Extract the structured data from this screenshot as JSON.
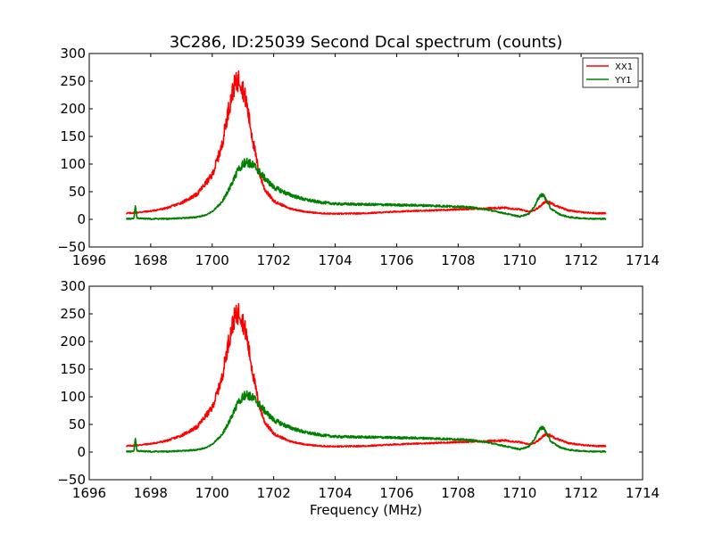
{
  "figure": {
    "title": "3C286, ID:25039 Second Dcal spectrum (counts)",
    "xlabel": "Frequency (MHz)"
  },
  "chart_data": [
    {
      "type": "line",
      "title": "3C286, ID:25039 Second Dcal spectrum (counts)",
      "xlabel": "",
      "ylabel": "",
      "xlim": [
        1696,
        1714
      ],
      "ylim": [
        -50,
        300
      ],
      "xticks": [
        "1696",
        "1698",
        "1700",
        "1702",
        "1704",
        "1706",
        "1708",
        "1710",
        "1712",
        "1714"
      ],
      "yticks": [
        "−50",
        "0",
        "50",
        "100",
        "150",
        "200",
        "250",
        "300"
      ],
      "legend": {
        "position": "top-right",
        "entries": [
          "XX1",
          "YY1"
        ]
      },
      "grid": false,
      "series": [
        {
          "name": "XX1",
          "color": "#ff0000",
          "x": [
            1697.2,
            1697.5,
            1698.0,
            1698.5,
            1699.0,
            1699.5,
            1700.0,
            1700.3,
            1700.5,
            1700.7,
            1700.9,
            1701.1,
            1701.3,
            1701.5,
            1701.7,
            1702.0,
            1702.5,
            1703.0,
            1703.5,
            1704.0,
            1705.0,
            1706.0,
            1707.0,
            1708.0,
            1709.0,
            1709.5,
            1710.0,
            1710.3,
            1710.5,
            1710.7,
            1710.85,
            1711.0,
            1711.3,
            1711.6,
            1712.0,
            1712.5,
            1712.8
          ],
          "y": [
            11,
            12,
            15,
            20,
            30,
            45,
            80,
            130,
            190,
            240,
            255,
            215,
            150,
            90,
            55,
            33,
            20,
            14,
            11,
            10,
            11,
            14,
            16,
            18,
            20,
            21,
            18,
            14,
            17,
            25,
            33,
            30,
            22,
            16,
            13,
            11,
            11
          ]
        },
        {
          "name": "YY1",
          "color": "#008000",
          "x": [
            1697.2,
            1697.45,
            1697.5,
            1697.55,
            1698.0,
            1698.5,
            1699.0,
            1699.5,
            1699.8,
            1700.0,
            1700.3,
            1700.6,
            1700.9,
            1701.1,
            1701.4,
            1701.7,
            1702.0,
            1702.5,
            1703.0,
            1703.5,
            1704.0,
            1705.0,
            1706.0,
            1707.0,
            1707.5,
            1708.0,
            1708.5,
            1709.0,
            1709.5,
            1710.0,
            1710.3,
            1710.5,
            1710.65,
            1710.75,
            1710.85,
            1711.0,
            1711.3,
            1711.6,
            1712.0,
            1712.5,
            1712.8
          ],
          "y": [
            1,
            1,
            24,
            2,
            1,
            1,
            2,
            4,
            8,
            14,
            30,
            60,
            95,
            105,
            95,
            75,
            58,
            45,
            36,
            31,
            28,
            27,
            26,
            25,
            24,
            23,
            21,
            17,
            11,
            5,
            10,
            25,
            42,
            45,
            37,
            20,
            9,
            4,
            2,
            1,
            1
          ]
        }
      ]
    },
    {
      "type": "line",
      "title": "",
      "xlabel": "Frequency (MHz)",
      "ylabel": "",
      "xlim": [
        1696,
        1714
      ],
      "ylim": [
        -50,
        300
      ],
      "xticks": [
        "1696",
        "1698",
        "1700",
        "1702",
        "1704",
        "1706",
        "1708",
        "1710",
        "1712",
        "1714"
      ],
      "yticks": [
        "−50",
        "0",
        "50",
        "100",
        "150",
        "200",
        "250",
        "300"
      ],
      "grid": false,
      "series": [
        {
          "color": "#ff0000",
          "x": [
            1697.2,
            1697.5,
            1698.0,
            1698.5,
            1699.0,
            1699.5,
            1700.0,
            1700.3,
            1700.5,
            1700.7,
            1700.9,
            1701.1,
            1701.3,
            1701.5,
            1701.7,
            1702.0,
            1702.5,
            1703.0,
            1703.5,
            1704.0,
            1705.0,
            1706.0,
            1707.0,
            1708.0,
            1709.0,
            1709.5,
            1710.0,
            1710.3,
            1710.5,
            1710.7,
            1710.85,
            1711.0,
            1711.3,
            1711.6,
            1712.0,
            1712.5,
            1712.8
          ],
          "y": [
            11,
            12,
            15,
            20,
            30,
            45,
            80,
            130,
            190,
            240,
            255,
            215,
            150,
            90,
            55,
            33,
            20,
            14,
            11,
            10,
            11,
            14,
            16,
            18,
            20,
            21,
            18,
            14,
            17,
            25,
            33,
            30,
            22,
            16,
            13,
            11,
            11
          ]
        },
        {
          "color": "#008000",
          "x": [
            1697.2,
            1697.45,
            1697.5,
            1697.55,
            1698.0,
            1698.5,
            1699.0,
            1699.5,
            1699.8,
            1700.0,
            1700.3,
            1700.6,
            1700.9,
            1701.1,
            1701.4,
            1701.7,
            1702.0,
            1702.5,
            1703.0,
            1703.5,
            1704.0,
            1705.0,
            1706.0,
            1707.0,
            1707.5,
            1708.0,
            1708.5,
            1709.0,
            1709.5,
            1710.0,
            1710.3,
            1710.5,
            1710.65,
            1710.75,
            1710.85,
            1711.0,
            1711.3,
            1711.6,
            1712.0,
            1712.5,
            1712.8
          ],
          "y": [
            1,
            1,
            24,
            2,
            1,
            1,
            2,
            4,
            8,
            14,
            30,
            60,
            95,
            105,
            95,
            75,
            58,
            45,
            36,
            31,
            28,
            27,
            26,
            25,
            24,
            23,
            21,
            17,
            11,
            5,
            10,
            25,
            42,
            45,
            37,
            20,
            9,
            4,
            2,
            1,
            1
          ]
        }
      ]
    }
  ]
}
